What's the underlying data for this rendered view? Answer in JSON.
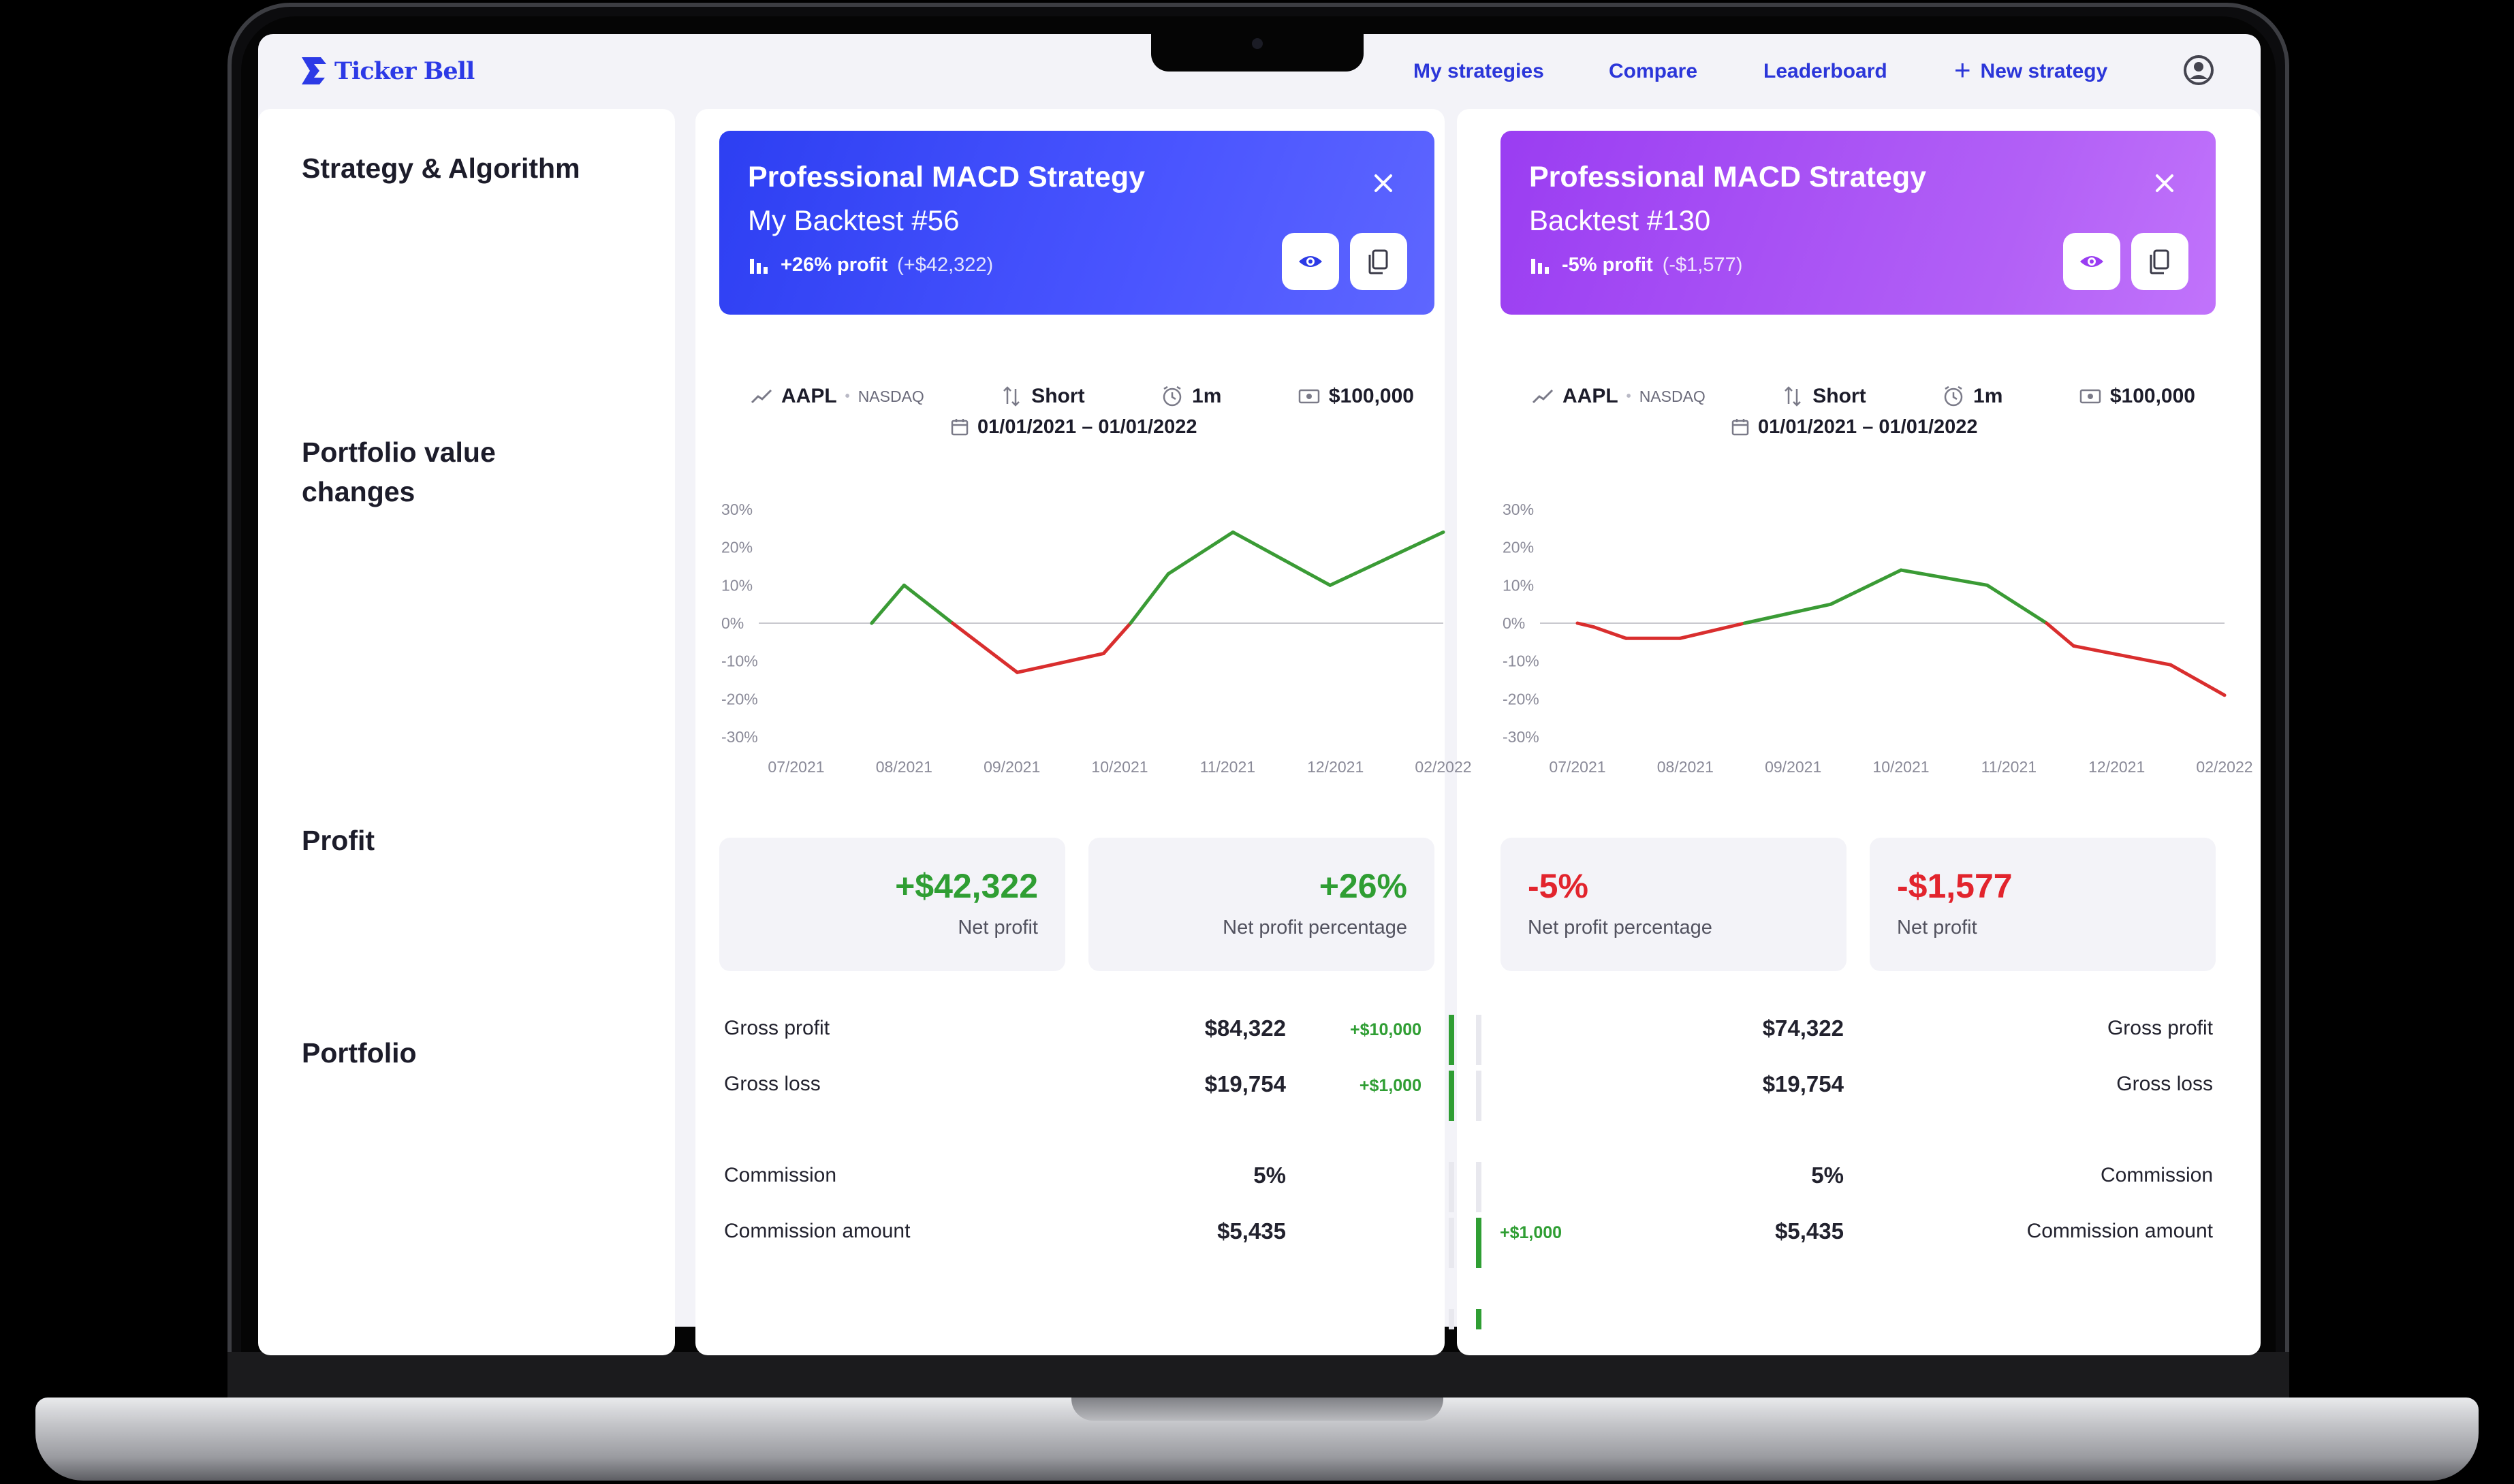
{
  "app": {
    "name": "Ticker Bell",
    "accent": "#2b36d9"
  },
  "nav": {
    "my_strategies": "My strategies",
    "compare": "Compare",
    "leaderboard": "Leaderboard",
    "new_strategy": "New strategy",
    "user_icon": "user-circle-icon"
  },
  "sections": {
    "strategy": "Strategy & Algorithm",
    "portfolio_changes": "Portfolio value changes",
    "profit": "Profit",
    "portfolio": "Portfolio"
  },
  "strategies": [
    {
      "title": "Professional MACD Strategy",
      "subtitle": "My Backtest #56",
      "profit_label": "+26% profit",
      "profit_amount": "(+$42,322)",
      "color": "#3a48f8",
      "ticker": "AAPL",
      "exchange": "NASDAQ",
      "direction": "Short",
      "interval": "1m",
      "capital": "$100,000",
      "date_range": "01/01/2021 – 01/01/2022",
      "net_profit": "+$42,322",
      "net_profit_label": "Net profit",
      "net_profit_pct": "+26%",
      "net_profit_pct_label": "Net profit percentage",
      "portfolio": {
        "gross_profit_label": "Gross profit",
        "gross_profit": "$84,322",
        "gross_profit_delta": "+$10,000",
        "gross_loss_label": "Gross loss",
        "gross_loss": "$19,754",
        "gross_loss_delta": "+$1,000",
        "commission_label": "Commission",
        "commission": "5%",
        "commission_amount_label": "Commission amount",
        "commission_amount": "$5,435"
      }
    },
    {
      "title": "Professional MACD Strategy",
      "subtitle": "Backtest #130",
      "profit_label": "-5% profit",
      "profit_amount": "(-$1,577)",
      "color": "#a64ef5",
      "ticker": "AAPL",
      "exchange": "NASDAQ",
      "direction": "Short",
      "interval": "1m",
      "capital": "$100,000",
      "date_range": "01/01/2021 – 01/01/2022",
      "net_profit": "-$1,577",
      "net_profit_label": "Net profit",
      "net_profit_pct": "-5%",
      "net_profit_pct_label": "Net profit percentage",
      "portfolio": {
        "gross_profit_label": "Gross profit",
        "gross_profit": "$74,322",
        "gross_loss_label": "Gross loss",
        "gross_loss": "$19,754",
        "commission_label": "Commission",
        "commission": "5%",
        "commission_amount_label": "Commission amount",
        "commission_amount": "$5,435",
        "commission_amount_delta": "+$1,000"
      }
    }
  ],
  "chart_data": [
    {
      "type": "line",
      "x": [
        "07/2021",
        "08/2021",
        "09/2021",
        "10/2021",
        "11/2021",
        "12/2021",
        "02/2022"
      ],
      "y_ticks": [
        "30%",
        "20%",
        "10%",
        "0%",
        "-10%",
        "-20%",
        "-30%"
      ],
      "ylim": [
        -30,
        30
      ],
      "points": [
        [
          0.7,
          0
        ],
        [
          1.0,
          10
        ],
        [
          1.45,
          0
        ],
        [
          2.05,
          -13
        ],
        [
          2.85,
          -8
        ],
        [
          3.1,
          0
        ],
        [
          3.45,
          13
        ],
        [
          4.05,
          24
        ],
        [
          4.95,
          10
        ],
        [
          6.0,
          24
        ]
      ],
      "colors": {
        "positive": "#3a9b35",
        "negative": "#d92e2e",
        "zero_line": "#c9c9cf"
      }
    },
    {
      "type": "line",
      "x": [
        "07/2021",
        "08/2021",
        "09/2021",
        "10/2021",
        "11/2021",
        "12/2021",
        "02/2022"
      ],
      "y_ticks": [
        "30%",
        "20%",
        "10%",
        "0%",
        "-10%",
        "-20%",
        "-30%"
      ],
      "ylim": [
        -30,
        30
      ],
      "points": [
        [
          0.0,
          0
        ],
        [
          0.15,
          -1
        ],
        [
          0.45,
          -4
        ],
        [
          0.95,
          -4
        ],
        [
          1.55,
          0
        ],
        [
          2.35,
          5
        ],
        [
          3.0,
          14
        ],
        [
          3.8,
          10
        ],
        [
          4.35,
          0
        ],
        [
          4.6,
          -6
        ],
        [
          5.5,
          -11
        ],
        [
          6.0,
          -19
        ]
      ],
      "colors": {
        "positive": "#3a9b35",
        "negative": "#d92e2e",
        "zero_line": "#c9c9cf"
      }
    }
  ]
}
